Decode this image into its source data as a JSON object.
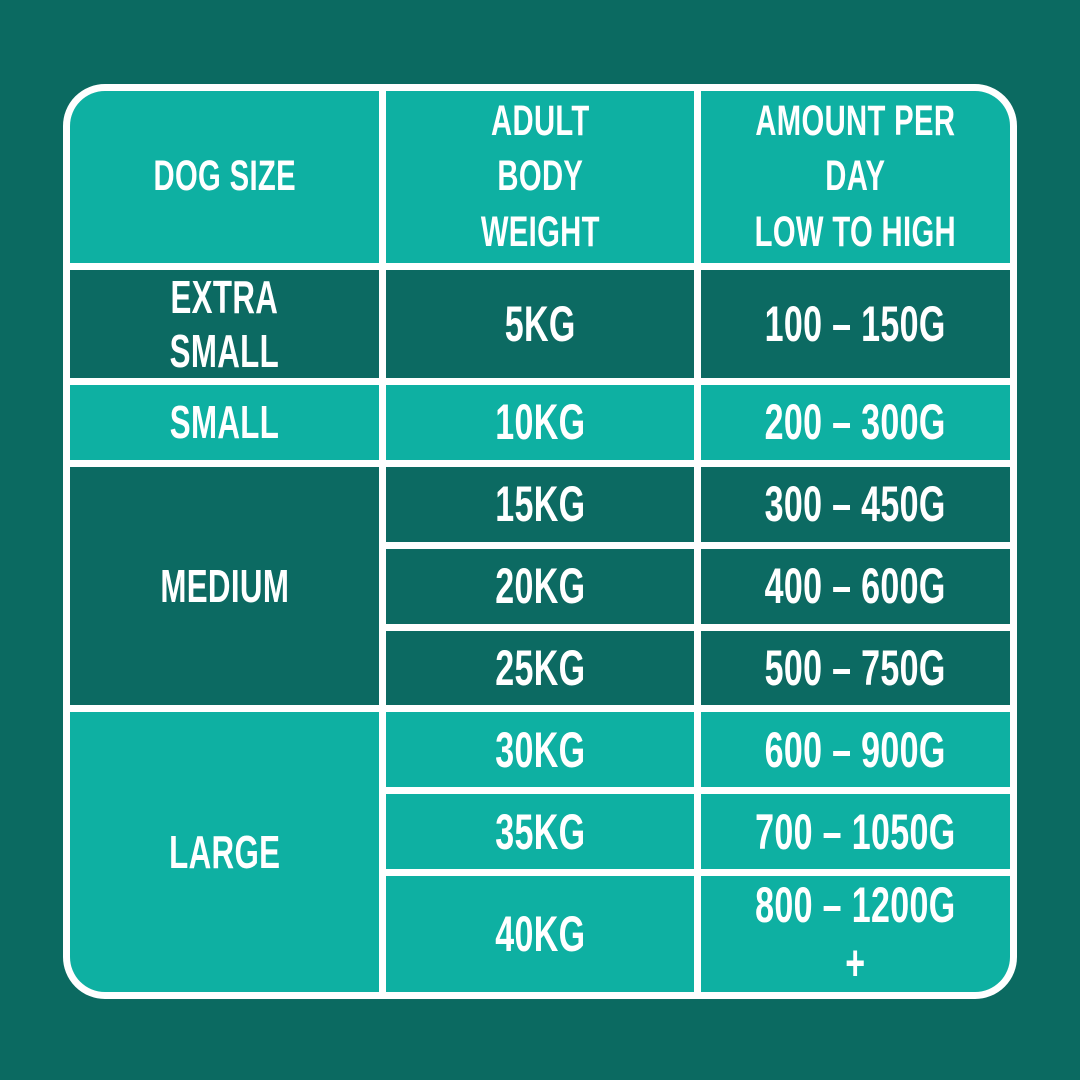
{
  "colors": {
    "page_background": "#0B6A61",
    "cell_dark": "#0C6A62",
    "cell_light": "#0EB0A2",
    "grid_line": "#FFFFFF",
    "text": "#FFFFFF"
  },
  "table": {
    "headers": [
      "DOG SIZE",
      "ADULT\nBODY WEIGHT",
      "AMOUNT PER DAY\nLOW TO HIGH"
    ],
    "groups": [
      {
        "size": "EXTRA SMALL",
        "shade": "dark",
        "rows": [
          {
            "weight": "5kg",
            "amount": "100 – 150g"
          }
        ]
      },
      {
        "size": "SMALL",
        "shade": "light",
        "rows": [
          {
            "weight": "10kg",
            "amount": "200 – 300g"
          }
        ]
      },
      {
        "size": "MEDIUM",
        "shade": "dark",
        "rows": [
          {
            "weight": "15kg",
            "amount": "300 – 450g"
          },
          {
            "weight": "20kg",
            "amount": "400 – 600g"
          },
          {
            "weight": "25kg",
            "amount": "500 – 750g"
          }
        ]
      },
      {
        "size": "LARGE",
        "shade": "light",
        "rows": [
          {
            "weight": "30kg",
            "amount": "600 – 900g"
          },
          {
            "weight": "35kg",
            "amount": "700 – 1050g"
          },
          {
            "weight": "40kg",
            "amount": "800 – 1200g +"
          }
        ]
      }
    ]
  },
  "chart_data": {
    "type": "table",
    "title": "Dog feeding guide",
    "columns": [
      "DOG SIZE",
      "ADULT BODY WEIGHT",
      "AMOUNT PER DAY LOW TO HIGH"
    ],
    "rows": [
      [
        "EXTRA SMALL",
        "5kg",
        "100 – 150g"
      ],
      [
        "SMALL",
        "10kg",
        "200 – 300g"
      ],
      [
        "MEDIUM",
        "15kg",
        "300 – 450g"
      ],
      [
        "MEDIUM",
        "20kg",
        "400 – 600g"
      ],
      [
        "MEDIUM",
        "25kg",
        "500 – 750g"
      ],
      [
        "LARGE",
        "30kg",
        "600 – 900g"
      ],
      [
        "LARGE",
        "35kg",
        "700 – 1050g"
      ],
      [
        "LARGE",
        "40kg",
        "800 – 1200g +"
      ]
    ]
  }
}
